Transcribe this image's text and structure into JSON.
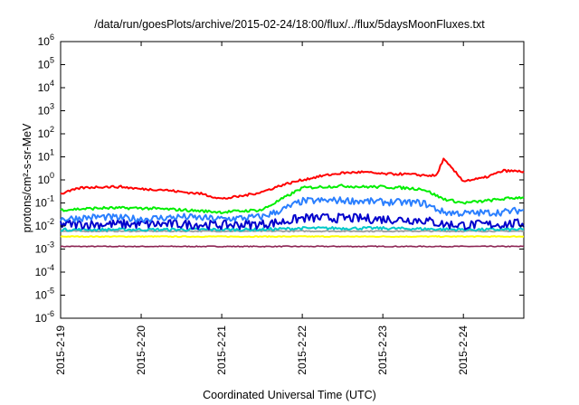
{
  "chart_data": {
    "type": "line",
    "title": "/data/run/goesPlots/archive/2015-02-24/18:00/flux/../flux/5daysMoonFluxes.txt",
    "xlabel": "Coordinated Universal Time (UTC)",
    "ylabel": "protons/cm²-s-sr-MeV",
    "y_scale": "log",
    "ylim": [
      1e-06,
      1000000.0
    ],
    "xlim": [
      "2015-02-19T00:00",
      "2015-02-24T18:00"
    ],
    "x_ticks": [
      "2015-2-19",
      "2015-2-20",
      "2015-2-21",
      "2015-2-22",
      "2015-2-23",
      "2015-2-24"
    ],
    "y_ticks": [
      {
        "value": 1e-06,
        "base": "10",
        "exp": "-6"
      },
      {
        "value": 1e-05,
        "base": "10",
        "exp": "-5"
      },
      {
        "value": 0.0001,
        "base": "10",
        "exp": "-4"
      },
      {
        "value": 0.001,
        "base": "10",
        "exp": "-3"
      },
      {
        "value": 0.01,
        "base": "10",
        "exp": "-2"
      },
      {
        "value": 0.1,
        "base": "10",
        "exp": "-1"
      },
      {
        "value": 1,
        "base": "10",
        "exp": "0"
      },
      {
        "value": 10.0,
        "base": "10",
        "exp": "1"
      },
      {
        "value": 100.0,
        "base": "10",
        "exp": "2"
      },
      {
        "value": 1000.0,
        "base": "10",
        "exp": "3"
      },
      {
        "value": 10000.0,
        "base": "10",
        "exp": "4"
      },
      {
        "value": 100000.0,
        "base": "10",
        "exp": "5"
      },
      {
        "value": 1000000.0,
        "base": "10",
        "exp": "6"
      }
    ],
    "grid": false,
    "legend": "none",
    "series": [
      {
        "color": "#ff0000",
        "x": [
          "2015-02-19T00:00",
          "2015-02-19T06:00",
          "2015-02-19T12:00",
          "2015-02-19T18:00",
          "2015-02-20T00:00",
          "2015-02-20T06:00",
          "2015-02-20T12:00",
          "2015-02-20T18:00",
          "2015-02-21T00:00",
          "2015-02-21T06:00",
          "2015-02-21T12:00",
          "2015-02-21T18:00",
          "2015-02-22T00:00",
          "2015-02-22T06:00",
          "2015-02-22T12:00",
          "2015-02-22T18:00",
          "2015-02-23T00:00",
          "2015-02-23T06:00",
          "2015-02-23T12:00",
          "2015-02-23T16:00",
          "2015-02-23T18:00",
          "2015-02-24T00:00",
          "2015-02-24T06:00",
          "2015-02-24T12:00",
          "2015-02-24T18:00"
        ],
        "values": [
          0.25,
          0.45,
          0.5,
          0.5,
          0.4,
          0.38,
          0.3,
          0.25,
          0.15,
          0.2,
          0.3,
          0.6,
          1.0,
          1.5,
          2.0,
          2.2,
          1.8,
          1.8,
          1.6,
          1.5,
          8.0,
          0.9,
          1.2,
          2.5,
          2.3
        ]
      },
      {
        "color": "#00ee00",
        "x": [
          "2015-02-19T00:00",
          "2015-02-19T12:00",
          "2015-02-20T00:00",
          "2015-02-20T12:00",
          "2015-02-21T00:00",
          "2015-02-21T12:00",
          "2015-02-21T18:00",
          "2015-02-22T00:00",
          "2015-02-22T06:00",
          "2015-02-22T12:00",
          "2015-02-22T18:00",
          "2015-02-23T00:00",
          "2015-02-23T06:00",
          "2015-02-23T12:00",
          "2015-02-23T18:00",
          "2015-02-24T00:00",
          "2015-02-24T06:00",
          "2015-02-24T12:00",
          "2015-02-24T18:00"
        ],
        "values": [
          0.05,
          0.06,
          0.06,
          0.05,
          0.04,
          0.05,
          0.15,
          0.45,
          0.5,
          0.55,
          0.5,
          0.5,
          0.45,
          0.4,
          0.15,
          0.1,
          0.12,
          0.15,
          0.18
        ]
      },
      {
        "color": "#2a7fff",
        "x": [
          "2015-02-19T00:00",
          "2015-02-19T12:00",
          "2015-02-20T00:00",
          "2015-02-20T12:00",
          "2015-02-21T00:00",
          "2015-02-21T12:00",
          "2015-02-21T18:00",
          "2015-02-22T00:00",
          "2015-02-22T12:00",
          "2015-02-23T00:00",
          "2015-02-23T12:00",
          "2015-02-23T18:00",
          "2015-02-24T00:00",
          "2015-02-24T12:00",
          "2015-02-24T18:00"
        ],
        "values": [
          0.02,
          0.025,
          0.02,
          0.025,
          0.02,
          0.025,
          0.05,
          0.12,
          0.13,
          0.11,
          0.1,
          0.04,
          0.035,
          0.04,
          0.05
        ]
      },
      {
        "color": "#0000cc",
        "x": [
          "2015-02-19T00:00",
          "2015-02-19T12:00",
          "2015-02-20T00:00",
          "2015-02-20T12:00",
          "2015-02-21T00:00",
          "2015-02-21T12:00",
          "2015-02-21T18:00",
          "2015-02-22T00:00",
          "2015-02-22T12:00",
          "2015-02-23T00:00",
          "2015-02-23T12:00",
          "2015-02-23T18:00",
          "2015-02-24T00:00",
          "2015-02-24T12:00",
          "2015-02-24T18:00"
        ],
        "values": [
          0.012,
          0.012,
          0.012,
          0.012,
          0.011,
          0.012,
          0.015,
          0.022,
          0.022,
          0.02,
          0.018,
          0.012,
          0.011,
          0.012,
          0.013
        ]
      },
      {
        "color": "#00c8c8",
        "x": [
          "2015-02-19T00:00",
          "2015-02-20T00:00",
          "2015-02-21T00:00",
          "2015-02-21T12:00",
          "2015-02-22T00:00",
          "2015-02-23T00:00",
          "2015-02-24T00:00",
          "2015-02-24T18:00"
        ],
        "values": [
          0.007,
          0.007,
          0.007,
          0.007,
          0.008,
          0.008,
          0.007,
          0.007
        ]
      },
      {
        "color": "#a0a0a0",
        "x": [
          "2015-02-19T00:00",
          "2015-02-20T00:00",
          "2015-02-21T00:00",
          "2015-02-22T00:00",
          "2015-02-23T00:00",
          "2015-02-24T00:00",
          "2015-02-24T18:00"
        ],
        "values": [
          0.006,
          0.006,
          0.006,
          0.006,
          0.006,
          0.006,
          0.006
        ]
      },
      {
        "color": "#ffff00",
        "x": [
          "2015-02-19T00:00",
          "2015-02-20T00:00",
          "2015-02-21T00:00",
          "2015-02-22T00:00",
          "2015-02-23T00:00",
          "2015-02-24T00:00",
          "2015-02-24T18:00"
        ],
        "values": [
          0.0035,
          0.0035,
          0.0035,
          0.0035,
          0.0035,
          0.0035,
          0.0035
        ]
      },
      {
        "color": "#8b2252",
        "x": [
          "2015-02-19T00:00",
          "2015-02-19T08:00",
          "2015-02-20T00:00",
          "2015-02-20T21:00",
          "2015-02-22T00:00",
          "2015-02-23T20:00",
          "2015-02-24T18:00"
        ],
        "values": [
          0.0013,
          0.0013,
          0.0013,
          0.0013,
          0.0013,
          0.0013,
          0.0013
        ]
      }
    ]
  }
}
